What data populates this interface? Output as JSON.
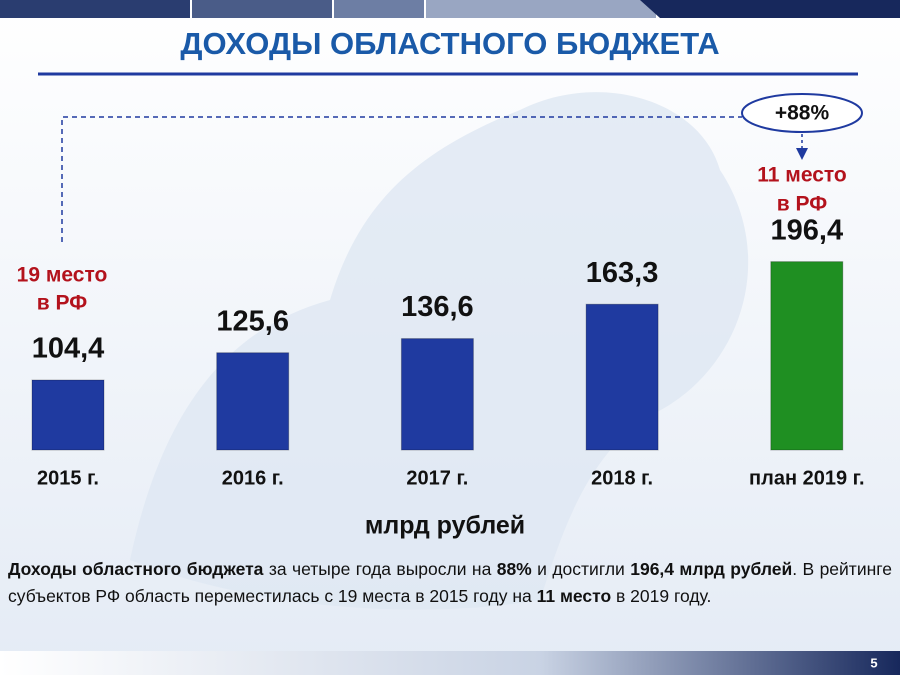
{
  "chart_data": {
    "type": "bar",
    "title": "ДОХОДЫ ОБЛАСТНОГО БЮДЖЕТА",
    "categories": [
      "2015 г.",
      "2016 г.",
      "2017 г.",
      "2018 г.",
      "план 2019 г."
    ],
    "values": [
      104.4,
      125.6,
      136.6,
      163.3,
      196.4
    ],
    "value_labels": [
      "104,4",
      "125,6",
      "136,6",
      "163,3",
      "196,4"
    ],
    "colors": [
      "#1f3aa0",
      "#1f3aa0",
      "#1f3aa0",
      "#1f3aa0",
      "#1f8f22"
    ],
    "ylim": [
      50,
      200
    ],
    "unit": "млрд рублей",
    "rank_2015": [
      "19 место",
      "в РФ"
    ],
    "rank_2019": [
      "11 место",
      "в РФ"
    ],
    "growth": "+88%"
  },
  "description": [
    {
      "text": "Доходы областного бюджета",
      "bold": true
    },
    {
      "text": " за четыре года выросли на ",
      "bold": false
    },
    {
      "text": "88%",
      "bold": true
    },
    {
      "text": "  и достигли ",
      "bold": false
    },
    {
      "text": "196,4 млрд рублей",
      "bold": true
    },
    {
      "text": ". В рейтинге субъектов РФ область переместилась с 19 места в 2015 году на ",
      "bold": false
    },
    {
      "text": "11 место",
      "bold": true
    },
    {
      "text": " в 2019 году.",
      "bold": false
    }
  ],
  "page_number": "5"
}
